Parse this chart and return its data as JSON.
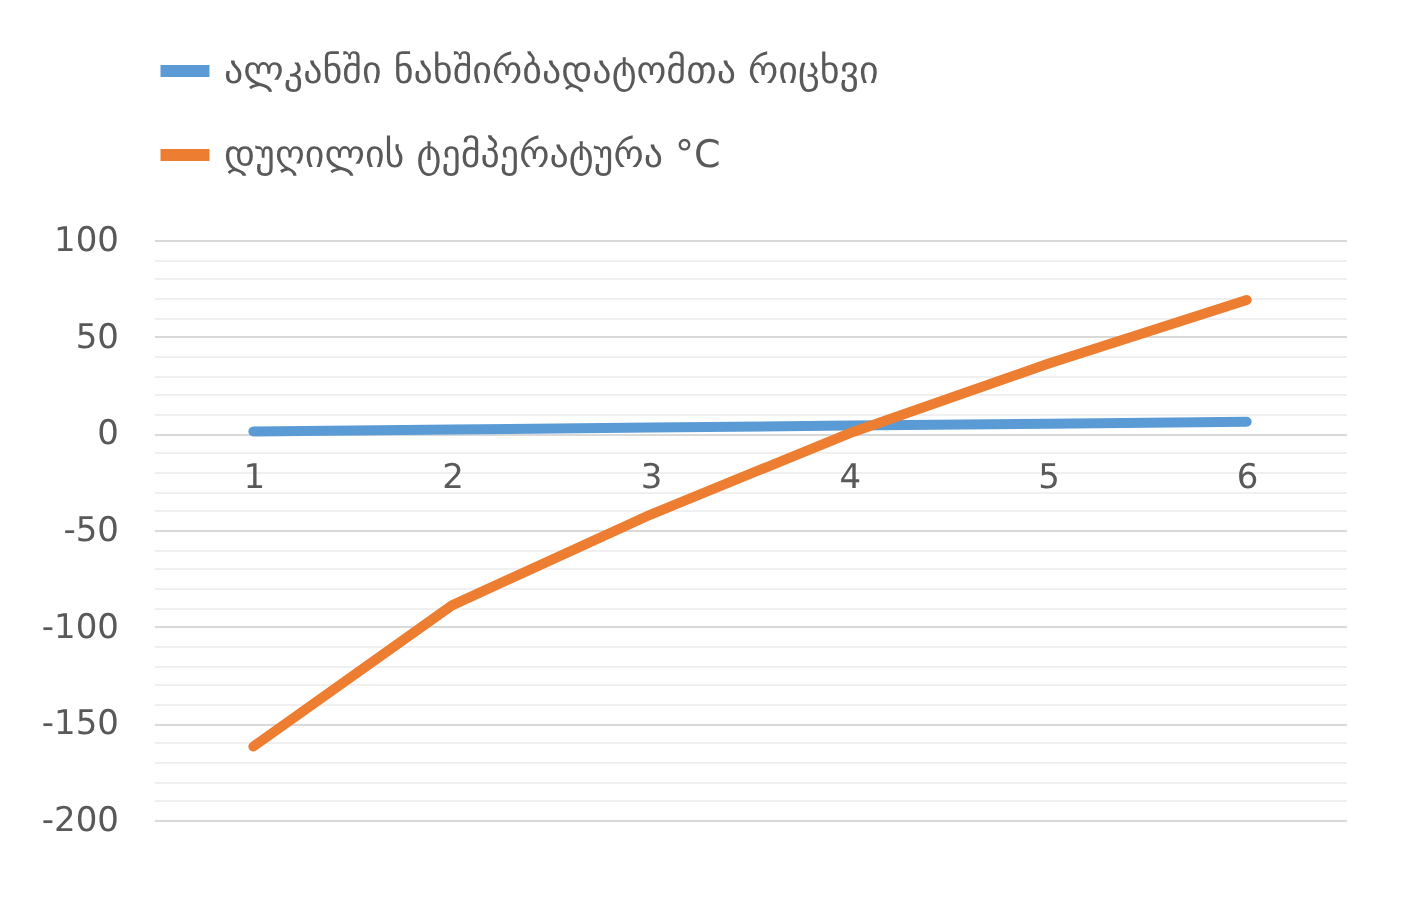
{
  "chart_data": {
    "type": "line",
    "categories": [
      "1",
      "2",
      "3",
      "4",
      "5",
      "6"
    ],
    "series": [
      {
        "name": "ალკანში ნახშირბადატომთა რიცხვი",
        "color": "#5b9bd5",
        "values": [
          1,
          2,
          3,
          4,
          5,
          6
        ]
      },
      {
        "name": "დუღილის ტემპერატურა °C",
        "color": "#ed7d31",
        "values": [
          -162,
          -89,
          -42,
          0,
          36,
          69
        ]
      }
    ],
    "ylim": [
      -200,
      100
    ],
    "yticks": [
      -200,
      {
        "value": -190,
        "label": null
      },
      {
        "value": -180,
        "label": null
      },
      {
        "value": -170,
        "label": null
      },
      {
        "value": -160,
        "label": null
      },
      -150,
      {
        "value": -140,
        "label": null
      },
      {
        "value": -130,
        "label": null
      },
      {
        "value": -120,
        "label": null
      },
      {
        "value": -110,
        "label": null
      },
      -100,
      {
        "value": -90,
        "label": null
      },
      {
        "value": -80,
        "label": null
      },
      {
        "value": -70,
        "label": null
      },
      {
        "value": -60,
        "label": null
      },
      -50,
      {
        "value": -40,
        "label": null
      },
      {
        "value": -30,
        "label": null
      },
      {
        "value": -20,
        "label": null
      },
      {
        "value": -10,
        "label": null
      },
      0,
      {
        "value": 10,
        "label": null
      },
      {
        "value": 20,
        "label": null
      },
      {
        "value": 30,
        "label": null
      },
      {
        "value": 40,
        "label": null
      },
      50,
      {
        "value": 60,
        "label": null
      },
      {
        "value": 70,
        "label": null
      },
      {
        "value": 80,
        "label": null
      },
      {
        "value": 90,
        "label": null
      },
      100
    ],
    "grid": "y",
    "legend": "top",
    "marker": "none",
    "line_style": "solid"
  }
}
